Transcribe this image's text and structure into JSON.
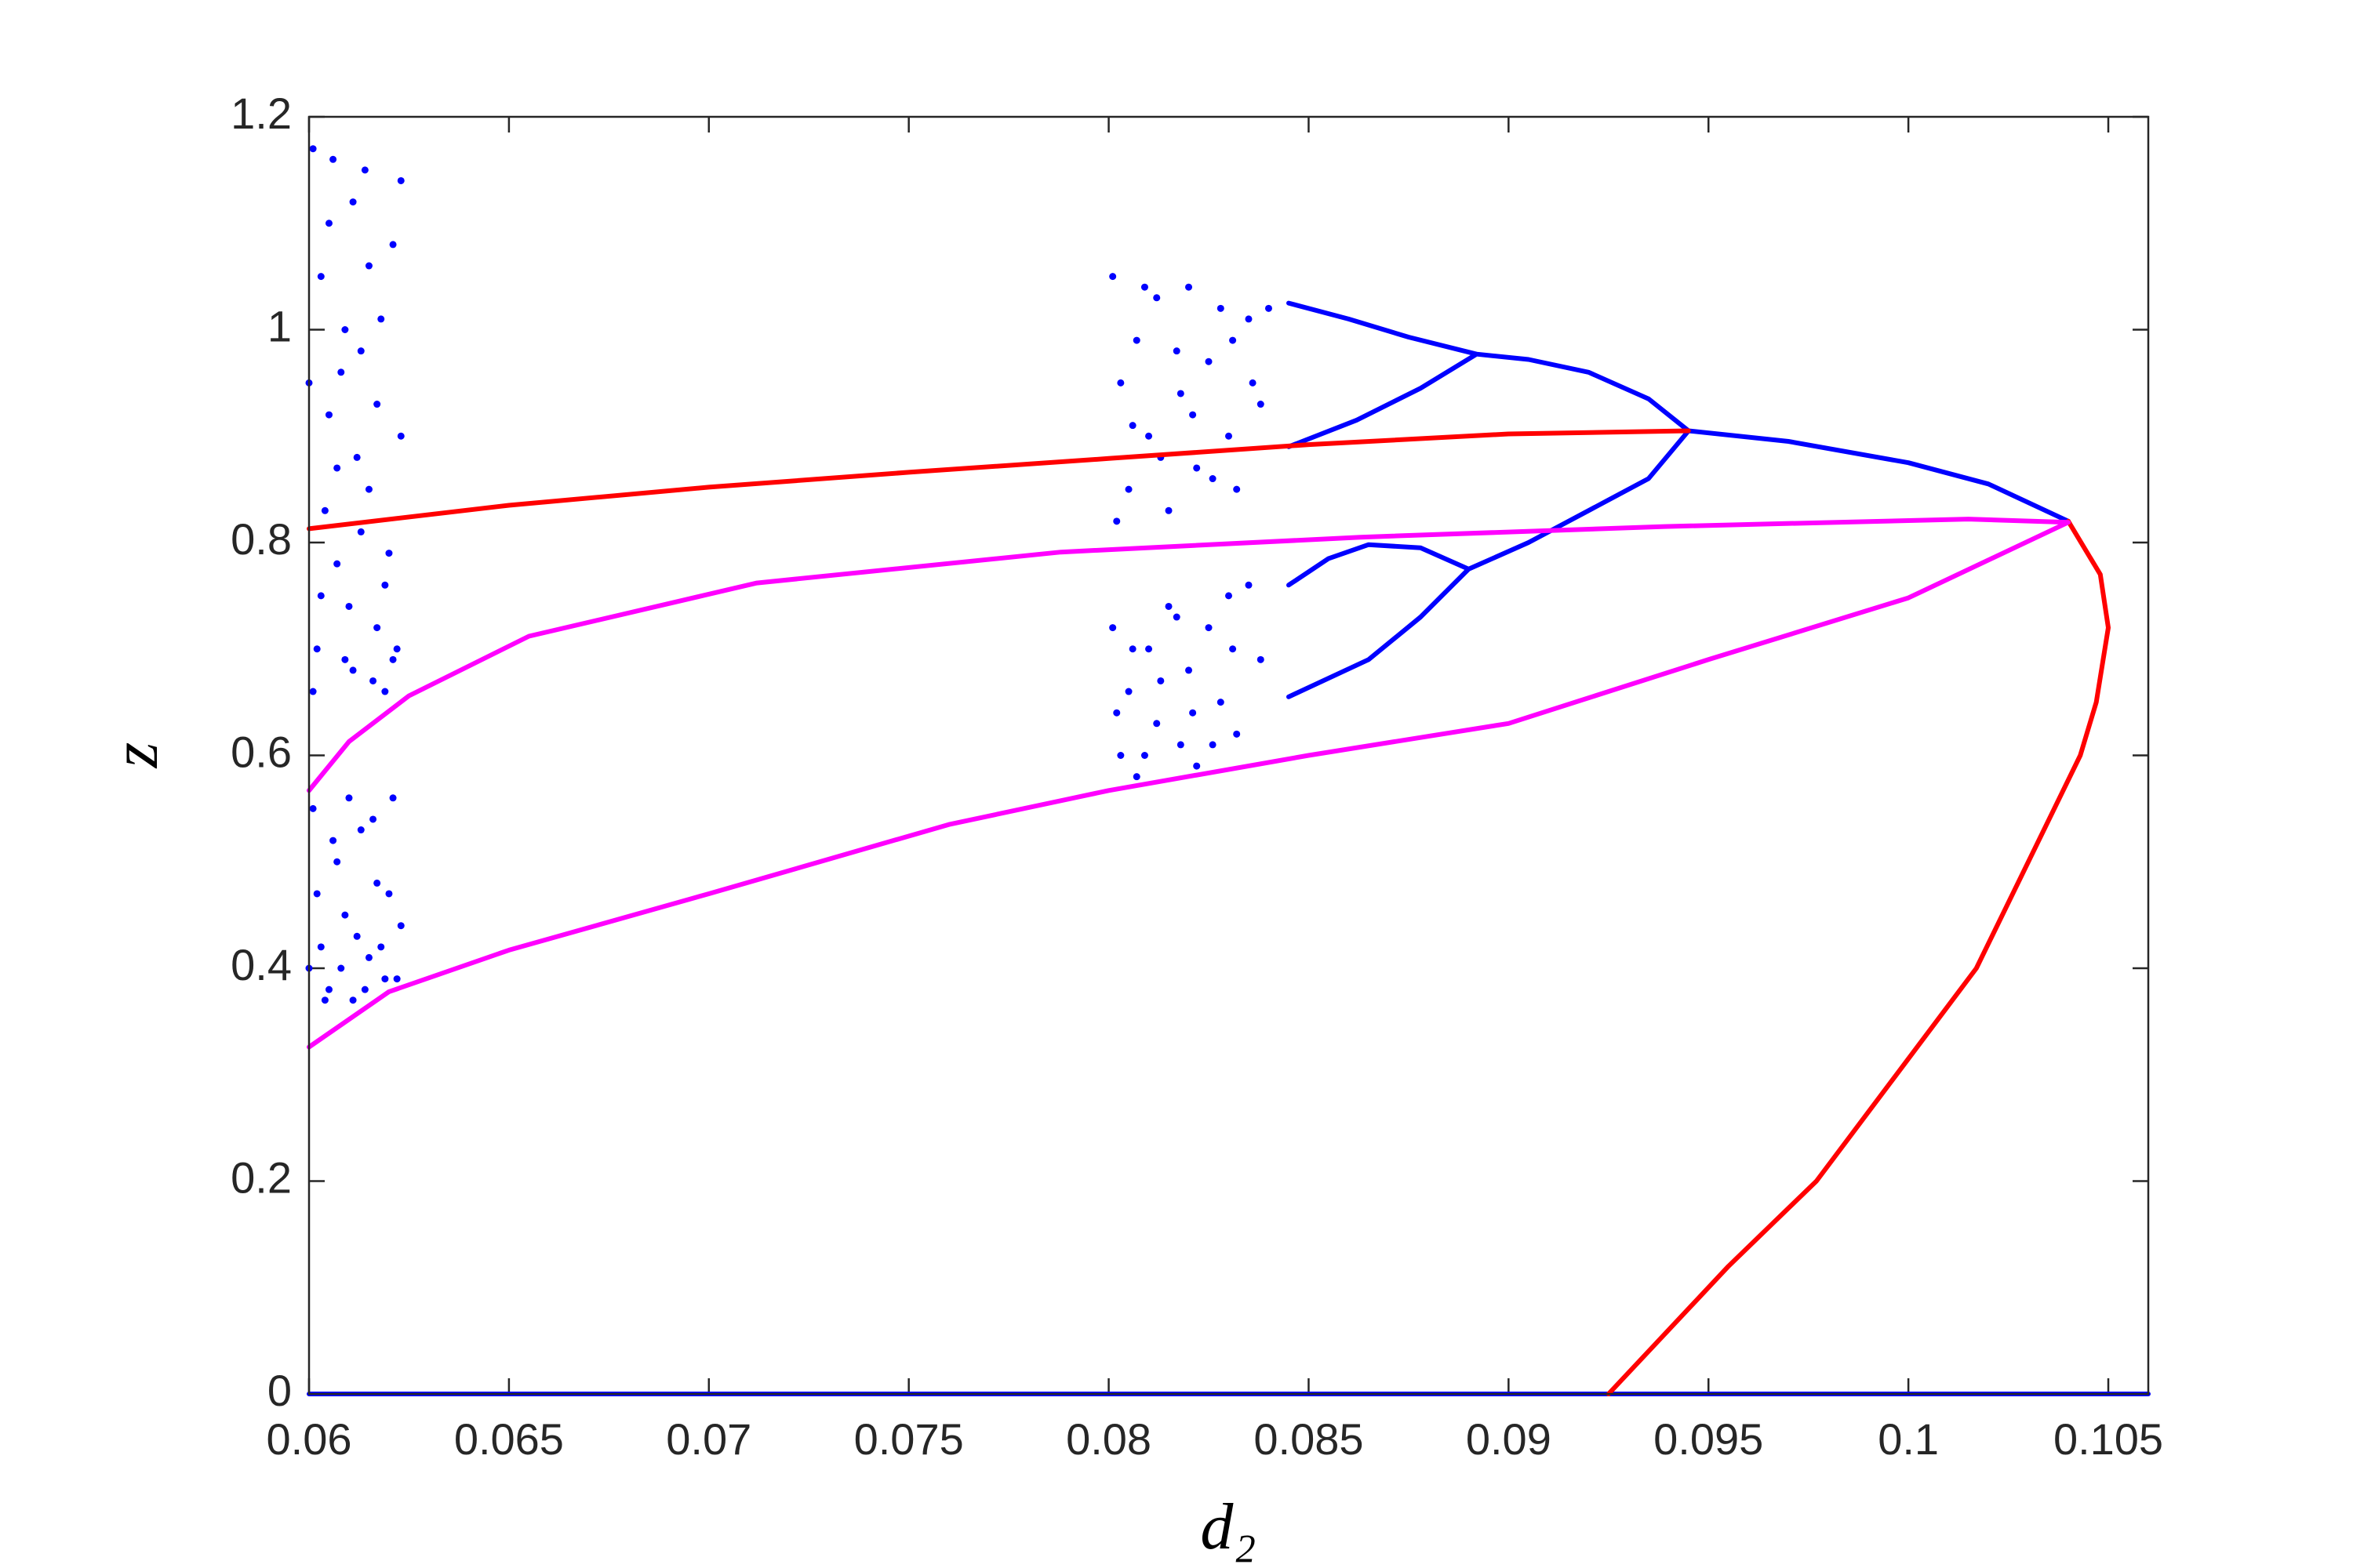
{
  "chart_data": {
    "type": "line",
    "xlabel": "d₂",
    "ylabel": "z",
    "xlim": [
      0.06,
      0.106
    ],
    "ylim": [
      0,
      1.2
    ],
    "xticks": [
      0.06,
      0.065,
      0.07,
      0.075,
      0.08,
      0.085,
      0.09,
      0.095,
      0.1,
      0.105
    ],
    "yticks": [
      0,
      0.2,
      0.4,
      0.6,
      0.8,
      1,
      1.2
    ],
    "series": [
      {
        "type": "scatter",
        "color": "#0000ff",
        "x": [
          0.0601,
          0.0603,
          0.0605,
          0.0607,
          0.0609,
          0.0611,
          0.0613,
          0.0615,
          0.0617,
          0.0619,
          0.0621,
          0.0623,
          0.0602,
          0.0604,
          0.0606,
          0.0608,
          0.061,
          0.0612,
          0.0614,
          0.0616,
          0.0618,
          0.062,
          0.0622,
          0.06,
          0.0601,
          0.0603,
          0.0605,
          0.0607,
          0.0609,
          0.0611,
          0.0613,
          0.0615,
          0.0617,
          0.0619,
          0.0621,
          0.0623
        ],
        "values": [
          1.17,
          1.05,
          0.92,
          0.78,
          0.69,
          1.12,
          0.98,
          0.85,
          0.72,
          0.66,
          1.08,
          0.9,
          0.7,
          0.83,
          1.16,
          0.96,
          0.74,
          0.88,
          1.15,
          0.67,
          1.01,
          0.79,
          0.7,
          0.95,
          0.66,
          0.75,
          1.1,
          0.87,
          1.0,
          0.68,
          0.81,
          1.06,
          0.93,
          0.76,
          0.69,
          1.14
        ]
      },
      {
        "type": "scatter",
        "color": "#0000ff",
        "x": [
          0.0601,
          0.0603,
          0.0605,
          0.0607,
          0.0609,
          0.0611,
          0.0613,
          0.0615,
          0.0617,
          0.0619,
          0.0621,
          0.0623,
          0.0602,
          0.0604,
          0.0606,
          0.0608,
          0.061,
          0.0612,
          0.0614,
          0.0616,
          0.0618,
          0.062,
          0.0622,
          0.06
        ],
        "values": [
          0.55,
          0.42,
          0.38,
          0.5,
          0.45,
          0.37,
          0.53,
          0.41,
          0.48,
          0.39,
          0.56,
          0.44,
          0.47,
          0.37,
          0.52,
          0.4,
          0.56,
          0.43,
          0.38,
          0.54,
          0.42,
          0.47,
          0.39,
          0.4
        ]
      },
      {
        "type": "scatter",
        "color": "#0000ff",
        "x": [
          0.0801,
          0.0803,
          0.0805,
          0.0807,
          0.081,
          0.0812,
          0.0815,
          0.0818,
          0.082,
          0.0822,
          0.0825,
          0.0828,
          0.083,
          0.0832,
          0.0835,
          0.0838,
          0.0802,
          0.0806,
          0.0809,
          0.0813,
          0.0817,
          0.0821,
          0.0826,
          0.0831,
          0.0836,
          0.084
        ],
        "values": [
          1.05,
          0.95,
          0.85,
          0.99,
          0.9,
          1.03,
          0.83,
          0.94,
          1.04,
          0.87,
          0.97,
          1.02,
          0.9,
          0.85,
          1.01,
          0.93,
          0.82,
          0.91,
          1.04,
          0.88,
          0.98,
          0.92,
          0.86,
          0.99,
          0.95,
          1.02
        ]
      },
      {
        "type": "scatter",
        "color": "#0000ff",
        "x": [
          0.0801,
          0.0803,
          0.0805,
          0.0807,
          0.081,
          0.0812,
          0.0815,
          0.0818,
          0.082,
          0.0822,
          0.0825,
          0.0828,
          0.083,
          0.0832,
          0.0835,
          0.0838,
          0.0802,
          0.0806,
          0.0809,
          0.0813,
          0.0817,
          0.0821,
          0.0826,
          0.0831
        ],
        "values": [
          0.72,
          0.6,
          0.66,
          0.58,
          0.7,
          0.63,
          0.74,
          0.61,
          0.68,
          0.59,
          0.72,
          0.65,
          0.75,
          0.62,
          0.76,
          0.69,
          0.64,
          0.7,
          0.6,
          0.67,
          0.73,
          0.64,
          0.61,
          0.7
        ]
      },
      {
        "type": "line",
        "color": "#0000ff",
        "x": [
          0.0945,
          0.097,
          0.1,
          0.102,
          0.104,
          null,
          0.0945,
          0.0935,
          0.092,
          0.0905,
          0.0892,
          null,
          0.0945,
          0.0935,
          0.092,
          0.0905,
          0.089,
          null,
          0.0892,
          0.0875,
          0.086,
          0.0845,
          null,
          0.0892,
          0.0878,
          0.0862,
          0.0845,
          null,
          0.089,
          0.0878,
          0.0865,
          0.0855,
          0.0845,
          null,
          0.089,
          0.0878,
          0.0865,
          0.0845,
          null,
          0.06,
          0.106
        ],
        "values": [
          0.905,
          0.895,
          0.875,
          0.855,
          0.82,
          null,
          0.905,
          0.935,
          0.96,
          0.972,
          0.977,
          null,
          0.905,
          0.86,
          0.83,
          0.8,
          0.775,
          null,
          0.977,
          0.993,
          1.01,
          1.025,
          null,
          0.977,
          0.945,
          0.915,
          0.89,
          null,
          0.775,
          0.795,
          0.798,
          0.785,
          0.76,
          null,
          0.775,
          0.73,
          0.69,
          0.655,
          null,
          0,
          0
        ]
      },
      {
        "type": "line",
        "color": "#ff0000",
        "x": [
          0.06,
          0.065,
          0.07,
          0.075,
          0.08,
          0.085,
          0.09,
          0.0945,
          null,
          0.104,
          0.1048,
          0.105,
          0.1047,
          0.1043,
          0.1017,
          0.0977,
          0.0955,
          0.0925
        ],
        "values": [
          0.813,
          0.835,
          0.852,
          0.866,
          0.879,
          0.892,
          0.902,
          0.905,
          null,
          0.82,
          0.77,
          0.72,
          0.65,
          0.6,
          0.4,
          0.2,
          0.12,
          0
        ]
      },
      {
        "type": "line",
        "color": "#ff00ff",
        "x": [
          0.06,
          0.061,
          0.0625,
          0.0655,
          0.0712,
          0.0788,
          0.0863,
          0.0939,
          0.1015,
          0.104,
          0.1,
          0.095,
          0.09,
          0.085,
          0.08,
          0.076,
          0.07,
          0.065,
          0.062,
          0.06
        ],
        "values": [
          0.567,
          0.613,
          0.656,
          0.712,
          0.762,
          0.791,
          0.805,
          0.815,
          0.822,
          0.819,
          0.748,
          0.69,
          0.63,
          0.6,
          0.567,
          0.535,
          0.47,
          0.417,
          0.378,
          0.326
        ]
      }
    ]
  }
}
